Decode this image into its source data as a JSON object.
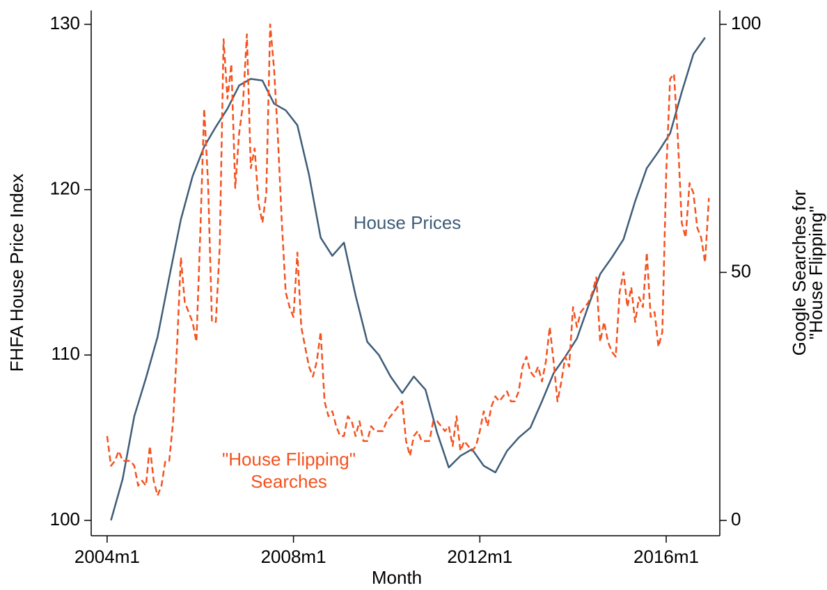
{
  "chart_data": {
    "type": "line",
    "x_label": "Month",
    "y_label": "FHFA House Price Index",
    "y2_label": [
      "Google Searches for",
      "\"House Flipping\""
    ],
    "xlim": [
      523.9,
      685.8
    ],
    "xticks": [
      {
        "value": 528,
        "label": "2004m1"
      },
      {
        "value": 576,
        "label": "2008m1"
      },
      {
        "value": 624,
        "label": "2012m1"
      },
      {
        "value": 672,
        "label": "2016m1"
      }
    ],
    "ylim": [
      99.07,
      130.84
    ],
    "yticks": [
      100,
      110,
      120,
      130
    ],
    "y2lim": [
      -3.09,
      102.8
    ],
    "y2ticks": [
      0,
      50,
      100
    ],
    "series": [
      {
        "name": "House Prices",
        "color": "#3e5c78",
        "dash": false,
        "x": [
          529,
          532,
          535,
          538,
          541,
          544,
          547,
          550,
          553,
          556,
          559,
          562,
          565,
          568,
          571,
          574,
          577,
          580,
          583,
          586,
          589,
          592,
          595,
          598,
          601,
          604,
          607,
          610,
          613,
          616,
          619,
          622,
          625,
          628,
          631,
          634,
          637,
          640,
          643,
          646,
          649,
          652,
          655,
          658,
          661,
          664,
          667,
          670,
          673,
          676,
          679,
          682
        ],
        "values": [
          100,
          102.5,
          106.3,
          108.6,
          111.1,
          114.7,
          118.2,
          120.8,
          122.6,
          123.8,
          124.9,
          126.3,
          126.7,
          126.6,
          125.2,
          124.8,
          123.9,
          120.9,
          117.1,
          116.0,
          116.8,
          113.6,
          110.8,
          110.0,
          108.7,
          107.7,
          108.7,
          107.9,
          105.3,
          103.2,
          103.9,
          104.3,
          103.3,
          102.9,
          104.2,
          105.0,
          105.6,
          107.2,
          108.9,
          109.9,
          111.0,
          113.0,
          114.9,
          115.9,
          117.0,
          119.3,
          121.3,
          122.3,
          123.4,
          125.9,
          128.2,
          129.2
        ]
      },
      {
        "name": [
          "\"House Flipping\"",
          "Searches"
        ],
        "color": "#f4511e",
        "dash": true,
        "axis": "y2",
        "x": [
          528,
          529,
          530,
          531,
          532,
          533,
          534,
          535,
          536,
          537,
          538,
          539,
          540,
          541,
          542,
          543,
          544,
          545,
          546,
          547,
          548,
          549,
          550,
          551,
          552,
          553,
          554,
          555,
          556,
          557,
          558,
          559,
          560,
          561,
          562,
          563,
          564,
          565,
          566,
          567,
          568,
          569,
          570,
          571,
          572,
          573,
          574,
          575,
          576,
          577,
          578,
          579,
          580,
          581,
          582,
          583,
          584,
          585,
          586,
          587,
          588,
          589,
          590,
          591,
          592,
          593,
          594,
          595,
          596,
          597,
          598,
          599,
          600,
          601,
          602,
          603,
          604,
          605,
          606,
          607,
          608,
          609,
          610,
          611,
          612,
          613,
          614,
          615,
          616,
          617,
          618,
          619,
          620,
          621,
          622,
          623,
          624,
          625,
          626,
          627,
          628,
          629,
          630,
          631,
          632,
          633,
          634,
          635,
          636,
          637,
          638,
          639,
          640,
          641,
          642,
          643,
          644,
          645,
          646,
          647,
          648,
          649,
          650,
          651,
          652,
          653,
          654,
          655,
          656,
          657,
          658,
          659,
          660,
          661,
          662,
          663,
          664,
          665,
          666,
          667,
          668,
          669,
          670,
          671,
          672,
          673,
          674,
          675,
          676,
          677,
          678,
          679,
          680,
          681,
          682,
          683
        ],
        "values": [
          17,
          11,
          12,
          14,
          12,
          12,
          12,
          11,
          7,
          8,
          7,
          15,
          8,
          5,
          7,
          12,
          12,
          20,
          35,
          53,
          44,
          42,
          40,
          36,
          58,
          83,
          68,
          40,
          40,
          55,
          97,
          85,
          92,
          67,
          78,
          84,
          98,
          71,
          75,
          64,
          60,
          66,
          100,
          91,
          77,
          60,
          46,
          43,
          41,
          54,
          39,
          35,
          31,
          29,
          32,
          38,
          24,
          21,
          22,
          19,
          17,
          17,
          21,
          20,
          17,
          20,
          16,
          16,
          19,
          18,
          18,
          18,
          20,
          21,
          22,
          23,
          24,
          16,
          13,
          17,
          18,
          16,
          16,
          16,
          20,
          20,
          19,
          18,
          19,
          15,
          21,
          14,
          16,
          15,
          14,
          15,
          18,
          22,
          19,
          23,
          25,
          24,
          25,
          26,
          24,
          24,
          26,
          31,
          33,
          30,
          29,
          31,
          28,
          32,
          39,
          32,
          24,
          28,
          33,
          31,
          43,
          39,
          42,
          43,
          44,
          46,
          49,
          36,
          40,
          36,
          34,
          33,
          46,
          50,
          43,
          47,
          40,
          45,
          43,
          54,
          41,
          42,
          35,
          38,
          70,
          89,
          90,
          77,
          60,
          57,
          68,
          66,
          59,
          57,
          52,
          65
        ]
      }
    ]
  }
}
